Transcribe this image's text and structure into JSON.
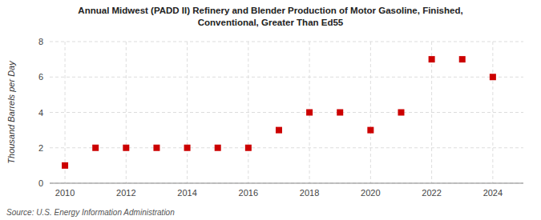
{
  "chart_data": {
    "type": "scatter",
    "title": "Annual Midwest (PADD II) Refinery and Blender Production of Motor Gasoline, Finished,\nConventional, Greater Than Ed55",
    "ylabel": "Thousand Barrels per Day",
    "source": "Source: U.S. Energy Information Administration",
    "x": [
      2010,
      2011,
      2012,
      2013,
      2014,
      2015,
      2016,
      2017,
      2018,
      2019,
      2020,
      2021,
      2022,
      2023,
      2024
    ],
    "values": [
      1,
      2,
      2,
      2,
      2,
      2,
      2,
      3,
      4,
      4,
      3,
      4,
      7,
      7,
      6
    ],
    "color": "#cc0000",
    "marker": "square",
    "xlim": [
      2009.5,
      2025.0
    ],
    "ylim": [
      0,
      8
    ],
    "xticks": [
      2010,
      2012,
      2014,
      2016,
      2018,
      2020,
      2022,
      2024
    ],
    "yticks": [
      0,
      2,
      4,
      6,
      8
    ],
    "grid": true
  }
}
